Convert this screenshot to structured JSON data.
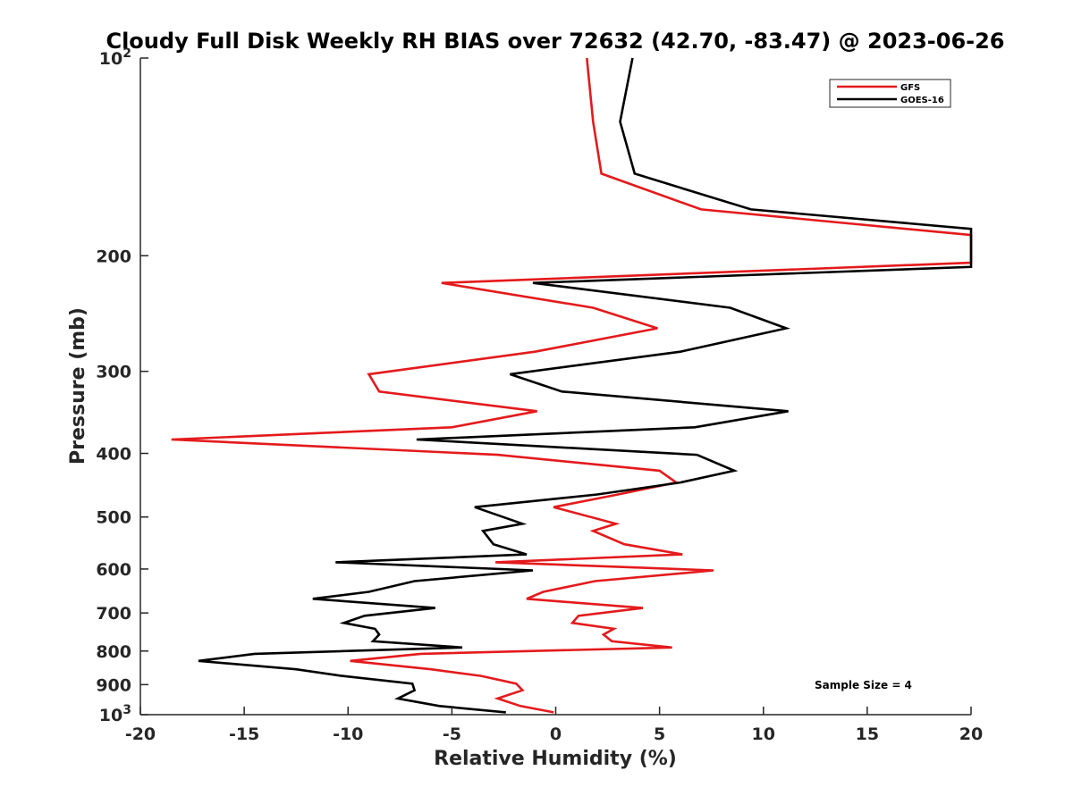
{
  "chart_data": {
    "type": "line",
    "title": "Cloudy Full Disk Weekly RH BIAS over 72632 (42.70, -83.47) @ 2023-06-26",
    "xlabel": "Relative Humidity (%)",
    "ylabel": "Pressure (mb)",
    "xlim": [
      -20,
      20
    ],
    "ylim": [
      1000,
      100
    ],
    "yscale": "log",
    "y_reversed": true,
    "grid": false,
    "x_ticks": [
      -20,
      -15,
      -10,
      -5,
      0,
      5,
      10,
      15,
      20
    ],
    "y_ticks": [
      {
        "value": 100,
        "label": "10",
        "sup": "2"
      },
      {
        "value": 200,
        "label": "200"
      },
      {
        "value": 300,
        "label": "300"
      },
      {
        "value": 400,
        "label": "400"
      },
      {
        "value": 500,
        "label": "500"
      },
      {
        "value": 600,
        "label": "600"
      },
      {
        "value": 700,
        "label": "700"
      },
      {
        "value": 800,
        "label": "800"
      },
      {
        "value": 900,
        "label": "900"
      },
      {
        "value": 1000,
        "label": "10",
        "sup": "3"
      }
    ],
    "legend_position": "top-right",
    "annotation": "Sample Size = 4",
    "series": [
      {
        "name": "GFS",
        "color": "#e41a1c",
        "points": [
          [
            1.5,
            100
          ],
          [
            1.8,
            125
          ],
          [
            2.2,
            150
          ],
          [
            7.0,
            170
          ],
          [
            20,
            186
          ],
          [
            20,
            205
          ],
          [
            -5.5,
            220
          ],
          [
            1.8,
            240
          ],
          [
            4.9,
            258
          ],
          [
            -1.0,
            280
          ],
          [
            -9.0,
            303
          ],
          [
            -8.5,
            322
          ],
          [
            -0.9,
            345
          ],
          [
            -5.0,
            365
          ],
          [
            -18.5,
            381
          ],
          [
            -2.8,
            402
          ],
          [
            5.0,
            425
          ],
          [
            5.8,
            443
          ],
          [
            3.0,
            462
          ],
          [
            -0.1,
            483
          ],
          [
            2.9,
            512
          ],
          [
            1.8,
            525
          ],
          [
            3.3,
            550
          ],
          [
            6.1,
            570
          ],
          [
            -2.9,
            586
          ],
          [
            7.6,
            603
          ],
          [
            1.9,
            626
          ],
          [
            -0.6,
            650
          ],
          [
            -1.4,
            666
          ],
          [
            4.2,
            688
          ],
          [
            1.1,
            707
          ],
          [
            0.8,
            725
          ],
          [
            2.8,
            740
          ],
          [
            2.3,
            755
          ],
          [
            2.7,
            773
          ],
          [
            5.6,
            790
          ],
          [
            -6.5,
            808
          ],
          [
            -9.9,
            828
          ],
          [
            -6.0,
            853
          ],
          [
            -3.6,
            873
          ],
          [
            -1.9,
            897
          ],
          [
            -1.6,
            918
          ],
          [
            -2.8,
            945
          ],
          [
            -1.7,
            970
          ],
          [
            -0.1,
            992
          ]
        ]
      },
      {
        "name": "GOES-16",
        "color": "#000000",
        "points": [
          [
            3.7,
            100
          ],
          [
            3.1,
            125
          ],
          [
            3.8,
            150
          ],
          [
            9.4,
            170
          ],
          [
            20,
            182
          ],
          [
            20,
            208
          ],
          [
            -1.1,
            220
          ],
          [
            8.4,
            240
          ],
          [
            11.1,
            258
          ],
          [
            6.0,
            280
          ],
          [
            -2.2,
            303
          ],
          [
            0.3,
            322
          ],
          [
            11.2,
            345
          ],
          [
            6.7,
            365
          ],
          [
            -6.7,
            381
          ],
          [
            6.8,
            402
          ],
          [
            8.6,
            425
          ],
          [
            6.0,
            443
          ],
          [
            2.0,
            462
          ],
          [
            -3.9,
            483
          ],
          [
            -1.6,
            512
          ],
          [
            -3.5,
            525
          ],
          [
            -3.0,
            550
          ],
          [
            -1.4,
            570
          ],
          [
            -10.6,
            586
          ],
          [
            -1.1,
            603
          ],
          [
            -6.8,
            626
          ],
          [
            -9.0,
            650
          ],
          [
            -11.7,
            666
          ],
          [
            -5.8,
            688
          ],
          [
            -9.2,
            707
          ],
          [
            -10.2,
            725
          ],
          [
            -8.7,
            740
          ],
          [
            -8.5,
            755
          ],
          [
            -8.8,
            773
          ],
          [
            -4.5,
            790
          ],
          [
            -14.5,
            808
          ],
          [
            -17.2,
            828
          ],
          [
            -12.5,
            853
          ],
          [
            -10.3,
            873
          ],
          [
            -6.9,
            897
          ],
          [
            -6.8,
            918
          ],
          [
            -7.6,
            945
          ],
          [
            -5.6,
            970
          ],
          [
            -2.4,
            992
          ]
        ]
      }
    ]
  }
}
